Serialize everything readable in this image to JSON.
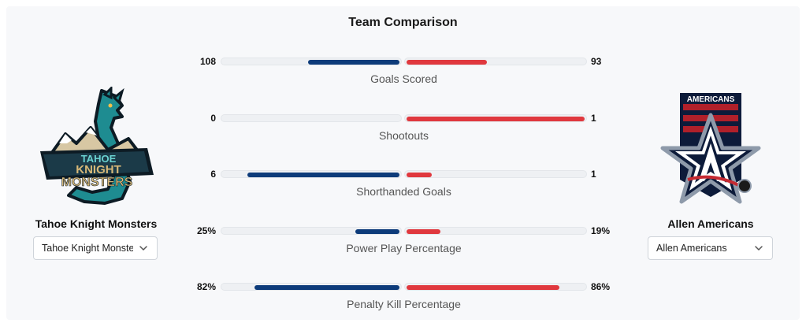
{
  "title": "Team Comparison",
  "teams": {
    "left": {
      "name": "Tahoe Knight Monsters",
      "selected": "Tahoe Knight Monste",
      "logo_text": [
        "TAHOE",
        "KNIGHT",
        "MONSTERS"
      ],
      "color": "#0d3b7a"
    },
    "right": {
      "name": "Allen Americans",
      "selected": "Allen Americans",
      "logo_text": "AMERICANS",
      "color": "#e0383e"
    }
  },
  "stats": [
    {
      "label": "Goals Scored",
      "left": "108",
      "right": "93",
      "left_share": 0.52,
      "right_share": 0.45
    },
    {
      "label": "Shootouts",
      "left": "0",
      "right": "1",
      "left_share": 0.0,
      "right_share": 1.0
    },
    {
      "label": "Shorthanded Goals",
      "left": "6",
      "right": "1",
      "left_share": 0.86,
      "right_share": 0.14
    },
    {
      "label": "Power Play Percentage",
      "left": "25%",
      "right": "19%",
      "left_share": 0.25,
      "right_share": 0.19
    },
    {
      "label": "Penalty Kill Percentage",
      "left": "82%",
      "right": "86%",
      "left_share": 0.82,
      "right_share": 0.86
    }
  ]
}
